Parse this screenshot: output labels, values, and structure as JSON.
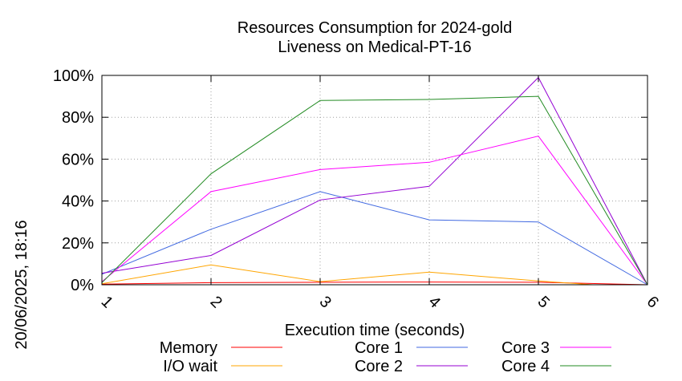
{
  "chart_data": {
    "type": "line",
    "title": "Resources Consumption for 2024-gold",
    "subtitle": "Liveness on Medical-PT-16",
    "xlabel": "Execution time (seconds)",
    "ylabel": "",
    "side_label": "20/06/2025, 18:16",
    "x": [
      1,
      2,
      3,
      4,
      5,
      6
    ],
    "xlim": [
      1,
      6
    ],
    "ylim": [
      0,
      100
    ],
    "x_ticks": [
      "1",
      "2",
      "3",
      "4",
      "5",
      "6"
    ],
    "y_ticks": [
      "0%",
      "20%",
      "40%",
      "60%",
      "80%",
      "100%"
    ],
    "y_tick_values": [
      0,
      20,
      40,
      60,
      80,
      100
    ],
    "grid": true,
    "legend_position": "bottom",
    "series": [
      {
        "name": "Memory",
        "color": "#ff0000",
        "x": [
          1,
          2,
          3,
          4,
          5,
          6
        ],
        "values": [
          0.3,
          1.0,
          1.2,
          1.3,
          1.2,
          0
        ]
      },
      {
        "name": "I/O wait",
        "color": "#ffa500",
        "x": [
          1,
          2,
          3,
          4,
          5,
          5.5,
          6
        ],
        "values": [
          0.5,
          9.5,
          1.5,
          6.0,
          1.8,
          0,
          0
        ]
      },
      {
        "name": "Core 1",
        "color": "#4169e1",
        "x": [
          1,
          2,
          3,
          4,
          5,
          6
        ],
        "values": [
          5.0,
          26.5,
          44.5,
          31.0,
          30.0,
          0
        ]
      },
      {
        "name": "Core 2",
        "color": "#9400d3",
        "x": [
          1,
          2,
          3,
          4,
          5,
          6
        ],
        "values": [
          5.5,
          14.0,
          40.5,
          47.0,
          99.0,
          0
        ]
      },
      {
        "name": "Core 3",
        "color": "#ff00ff",
        "x": [
          1,
          2,
          3,
          4,
          5,
          6
        ],
        "values": [
          1.5,
          44.5,
          55.0,
          58.5,
          71.0,
          0
        ]
      },
      {
        "name": "Core 4",
        "color": "#228b22",
        "x": [
          1,
          2,
          3,
          4,
          5,
          6
        ],
        "values": [
          1.0,
          53.0,
          88.0,
          88.5,
          90.0,
          0
        ]
      }
    ]
  }
}
